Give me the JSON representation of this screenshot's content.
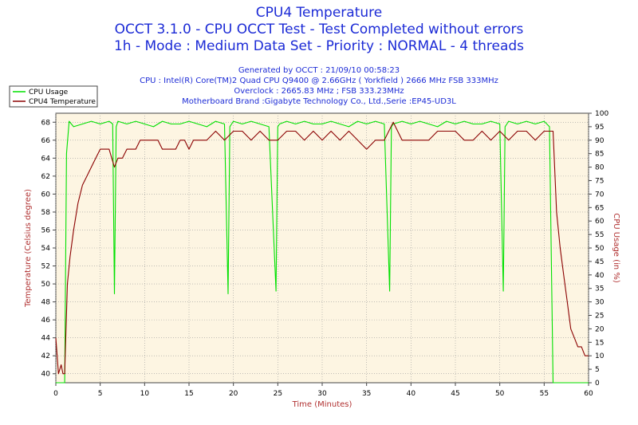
{
  "header": {
    "title": "CPU4 Temperature",
    "line2": "OCCT 3.1.0 - CPU OCCT Test - Test Completed without errors",
    "line3": "1h - Mode : Medium Data Set - Priority : NORMAL - 4 threads",
    "info1": "Generated by OCCT : 21/09/10 00:58:23",
    "info2": "CPU : Intel(R) Core(TM)2 Quad CPU Q9400 @ 2.66GHz ( Yorkfield ) 2666 MHz FSB 333MHz",
    "info3": "Overclock : 2665.83 MHz ; FSB 333.23MHz",
    "info4": "Motherboard Brand :Gigabyte Technology Co., Ltd.,Serie :EP45-UD3L"
  },
  "colors": {
    "title": "#1c2bd6",
    "temperature": "#8b0000",
    "cpu_usage": "#00e000",
    "plot_bg": "#fdf5e2",
    "axis_label_left": "#b03030",
    "axis_label_bottom": "#b03030"
  },
  "chart_data": {
    "type": "line",
    "xlabel": "Time (Minutes)",
    "ylabel_left": "Temperature (Celsius degree)",
    "ylabel_right": "CPU Usage (in %)",
    "xlim": [
      0,
      60
    ],
    "ylim_left": [
      39,
      69
    ],
    "ylim_right": [
      0,
      100
    ],
    "x_ticks": [
      "0",
      "5",
      "10",
      "15",
      "20",
      "25",
      "30",
      "35",
      "40",
      "45",
      "50",
      "55",
      "60"
    ],
    "y_left_ticks": [
      "40",
      "42",
      "44",
      "46",
      "48",
      "50",
      "52",
      "54",
      "56",
      "58",
      "60",
      "62",
      "64",
      "66",
      "68"
    ],
    "y_right_ticks": [
      "0",
      "5",
      "10",
      "15",
      "20",
      "25",
      "30",
      "35",
      "40",
      "45",
      "50",
      "55",
      "60",
      "65",
      "70",
      "75",
      "80",
      "85",
      "90",
      "95",
      "100"
    ],
    "grid": true,
    "legend_position": "top-left",
    "series": [
      {
        "name": "CPU Usage",
        "axis": "right",
        "x": [
          0,
          0.5,
          1.0,
          1.2,
          1.5,
          2,
          3,
          4,
          5,
          6,
          6.4,
          6.6,
          6.8,
          7,
          8,
          9,
          10,
          11,
          12,
          13,
          14,
          15,
          16,
          17,
          18,
          19,
          19.4,
          19.6,
          19.8,
          20,
          21,
          22,
          23,
          24,
          24.8,
          25,
          25.2,
          26,
          27,
          28,
          29,
          30,
          31,
          32,
          33,
          34,
          35,
          36,
          37,
          37.6,
          37.8,
          38,
          39,
          40,
          41,
          42,
          43,
          44,
          45,
          46,
          47,
          48,
          49,
          50,
          50.4,
          50.6,
          50.8,
          51,
          52,
          53,
          54,
          55,
          55.6,
          56.0,
          56.2,
          60
        ],
        "values": [
          0,
          0,
          0,
          85,
          97,
          95,
          96,
          97,
          96,
          97,
          96,
          33,
          95,
          97,
          96,
          97,
          96,
          95,
          97,
          96,
          96,
          97,
          96,
          95,
          97,
          96,
          33,
          95,
          96,
          97,
          96,
          97,
          96,
          95,
          34,
          95,
          96,
          97,
          96,
          97,
          96,
          96,
          97,
          96,
          95,
          97,
          96,
          97,
          96,
          34,
          95,
          96,
          97,
          96,
          97,
          96,
          95,
          97,
          96,
          97,
          96,
          96,
          97,
          96,
          34,
          95,
          96,
          97,
          96,
          97,
          96,
          97,
          95,
          0,
          0,
          0
        ]
      },
      {
        "name": "CPU4 Temperature",
        "axis": "left",
        "x": [
          0,
          0.3,
          0.6,
          0.8,
          1.0,
          1.3,
          1.6,
          2,
          2.5,
          3,
          3.5,
          4,
          4.5,
          5,
          5.5,
          6,
          6.3,
          6.6,
          7,
          7.5,
          8,
          8.5,
          9,
          9.5,
          10,
          10.5,
          11,
          11.5,
          12,
          12.5,
          13,
          13.5,
          14,
          14.5,
          15,
          15.5,
          16,
          17,
          18,
          19,
          20,
          21,
          22,
          23,
          24,
          25,
          26,
          27,
          28,
          29,
          30,
          31,
          32,
          33,
          34,
          35,
          36,
          37,
          38,
          39,
          40,
          41,
          42,
          43,
          44,
          45,
          46,
          47,
          48,
          49,
          50,
          51,
          52,
          53,
          54,
          55,
          56,
          56.4,
          56.8,
          57.2,
          57.6,
          58,
          58.4,
          58.8,
          59.2,
          59.6,
          60
        ],
        "values": [
          44,
          40,
          41,
          40,
          40,
          50,
          53,
          56,
          59,
          61,
          62,
          63,
          64,
          65,
          65,
          65,
          64,
          63,
          64,
          64,
          65,
          65,
          65,
          66,
          66,
          66,
          66,
          66,
          65,
          65,
          65,
          65,
          66,
          66,
          65,
          66,
          66,
          66,
          67,
          66,
          67,
          67,
          66,
          67,
          66,
          66,
          67,
          67,
          66,
          67,
          66,
          67,
          66,
          67,
          66,
          65,
          66,
          66,
          68,
          66,
          66,
          66,
          66,
          67,
          67,
          67,
          66,
          66,
          67,
          66,
          67,
          66,
          67,
          67,
          66,
          67,
          67,
          58,
          54,
          51,
          48,
          45,
          44,
          43,
          43,
          42,
          42
        ]
      }
    ]
  }
}
